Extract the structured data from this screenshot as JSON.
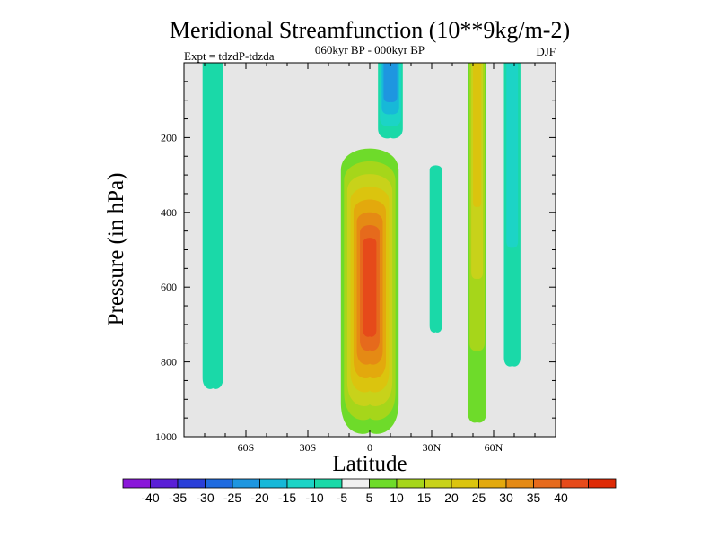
{
  "chart_data": {
    "type": "contour",
    "title": "Meridional Streamfunction (10**9kg/m-2)",
    "subtitle_center": "060kyr BP - 000kyr BP",
    "subtitle_left": "Expt = tdzdP-tdzda",
    "subtitle_right": "DJF",
    "xlabel": "Latitude",
    "ylabel": "Pressure (in hPa)",
    "xlim": [
      -90,
      90
    ],
    "ylim": [
      1000,
      0
    ],
    "x_ticks": [
      {
        "value": -60,
        "label": "60S"
      },
      {
        "value": -30,
        "label": "30S"
      },
      {
        "value": 0,
        "label": "0"
      },
      {
        "value": 30,
        "label": "30N"
      },
      {
        "value": 60,
        "label": "60N"
      }
    ],
    "y_ticks": [
      {
        "value": 200,
        "label": "200"
      },
      {
        "value": 400,
        "label": "400"
      },
      {
        "value": 600,
        "label": "600"
      },
      {
        "value": 800,
        "label": "800"
      },
      {
        "value": 1000,
        "label": "1000"
      }
    ],
    "background_color": "#e6e6e6",
    "colorbar": {
      "colors": [
        "#8a17d9",
        "#5a1fd6",
        "#2a3fd8",
        "#1f6be0",
        "#1e96e0",
        "#17b8d8",
        "#1cd4c6",
        "#1ad9a8",
        "#f0f0f0",
        "#6edb2a",
        "#a6d61a",
        "#c8d21a",
        "#dbc40e",
        "#e3a90d",
        "#e58a14",
        "#e66a1c",
        "#e64a1a",
        "#de2a06"
      ],
      "labels": [
        "-40",
        "-35",
        "-30",
        "-25",
        "-20",
        "-15",
        "-10",
        "-5",
        "5",
        "10",
        "15",
        "20",
        "25",
        "30",
        "35",
        "40"
      ]
    },
    "features": [
      {
        "name": "sh-negative-column",
        "sign": "negative",
        "peak": -7,
        "lat": -76,
        "p_top": 0,
        "p_bottom": 870
      },
      {
        "name": "equatorial-positive-cell",
        "sign": "positive",
        "peak": 42,
        "lat": 0,
        "p_top": 210,
        "p_bottom": 985
      },
      {
        "name": "upper-negative-cell",
        "sign": "negative",
        "peak": -20,
        "lat": 10,
        "p_top": 0,
        "p_bottom": 200
      },
      {
        "name": "nh-negative-column",
        "sign": "negative",
        "peak": -7,
        "lat": 32,
        "p_top": 270,
        "p_bottom": 720
      },
      {
        "name": "nh-positive-column",
        "sign": "positive",
        "peak": 22,
        "lat": 52,
        "p_top": 0,
        "p_bottom": 960
      },
      {
        "name": "high-lat-negative-column",
        "sign": "negative",
        "peak": -12,
        "lat": 69,
        "p_top": 0,
        "p_bottom": 810
      }
    ]
  }
}
